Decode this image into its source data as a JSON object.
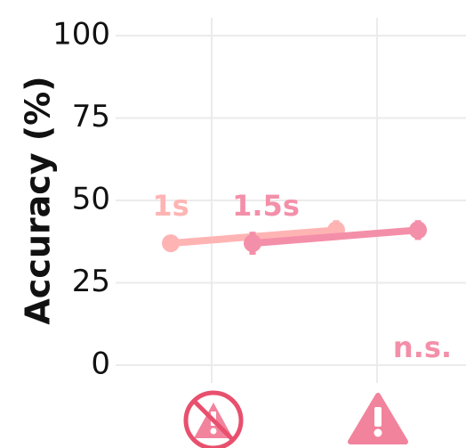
{
  "chart_data": {
    "type": "line",
    "y_label": "Accuracy (%)",
    "categories": [
      null,
      null
    ],
    "series": [
      {
        "name": "1s",
        "color": "#ffb4b4",
        "values": [
          37,
          41
        ],
        "errors": [
          1,
          3
        ]
      },
      {
        "name": "1.5s",
        "color": "#f48fa9",
        "values": [
          37,
          41
        ],
        "errors": [
          3.5,
          3
        ]
      }
    ],
    "annotation": "n.s.",
    "ylim": [
      0,
      100
    ],
    "yticks": [
      0,
      25,
      50,
      75,
      100
    ],
    "grid": true
  }
}
